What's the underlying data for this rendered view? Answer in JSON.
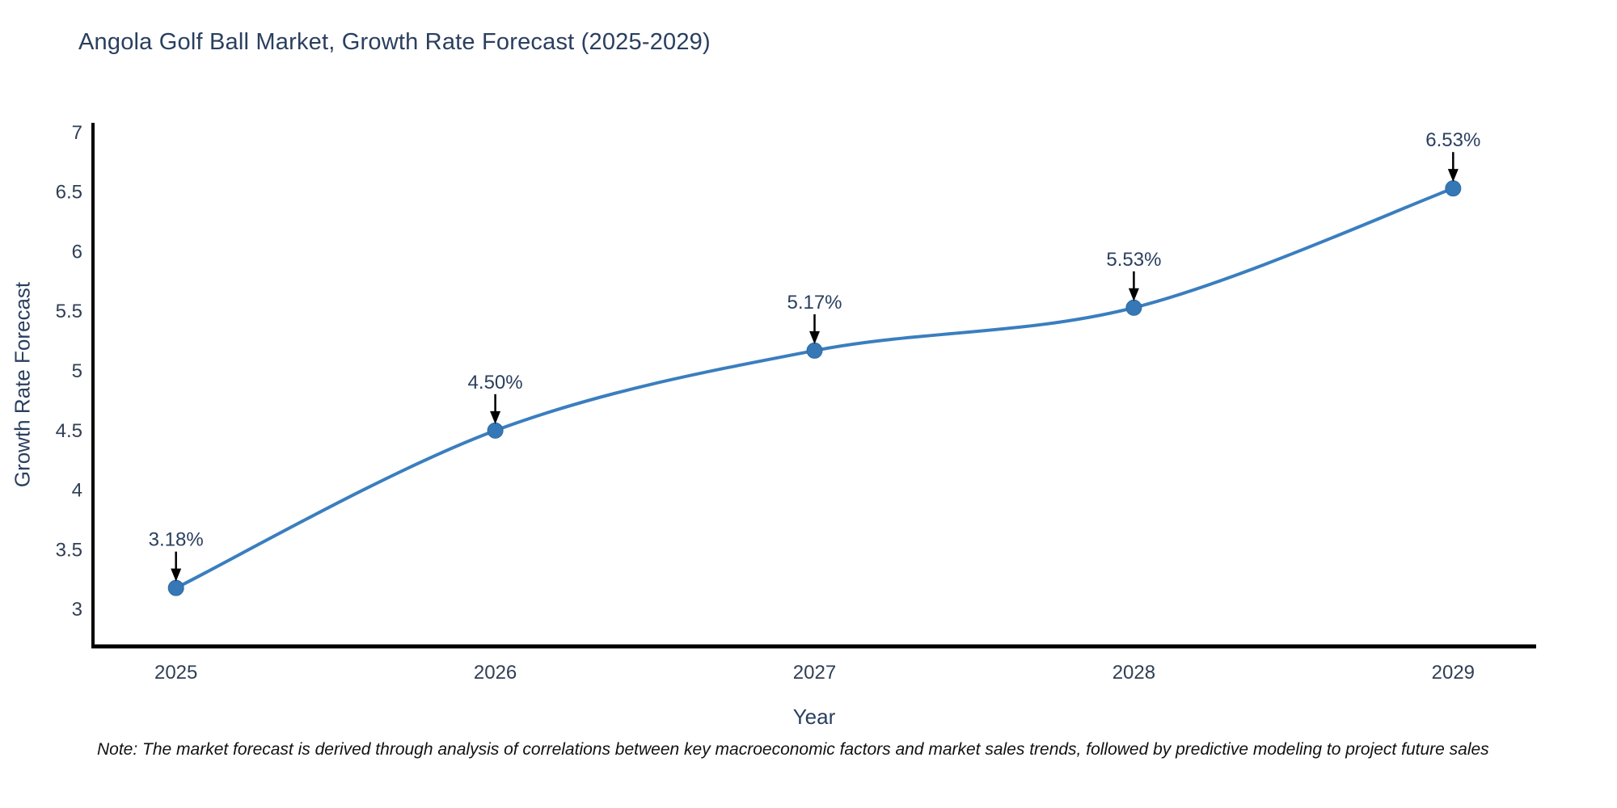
{
  "page": {
    "background": "#ffffff"
  },
  "chart_data": {
    "type": "line",
    "title": "Angola Golf Ball Market, Growth Rate Forecast (2025-2029)",
    "xlabel": "Year",
    "ylabel": "Growth Rate Forecast",
    "x": [
      2025,
      2026,
      2027,
      2028,
      2029
    ],
    "x_tick_labels": [
      "2025",
      "2026",
      "2027",
      "2028",
      "2029"
    ],
    "series": [
      {
        "name": "Growth Rate Forecast",
        "values": [
          3.18,
          4.5,
          5.17,
          5.53,
          6.53
        ]
      }
    ],
    "annotations": [
      "3.18%",
      "4.50%",
      "5.17%",
      "5.53%",
      "6.53%"
    ],
    "y_ticks": [
      3,
      3.5,
      4,
      4.5,
      5,
      5.5,
      6,
      6.5,
      7
    ],
    "y_tick_labels": [
      "3",
      "3.5",
      "4",
      "4.5",
      "5",
      "5.5",
      "6",
      "6.5",
      "7"
    ],
    "xlim": [
      2024.74,
      2029.26
    ],
    "ylim": [
      2.69,
      7.08
    ],
    "grid": false,
    "line_shape": "spline",
    "legend": "none",
    "colors": {
      "line": "#3a7ebf",
      "marker": "#3578b5",
      "marker_edge": "#2d6aa3",
      "text": "#2a3f5f",
      "axis": "#000000",
      "arrow": "#000000"
    }
  },
  "note": {
    "text": "Note: The market forecast is derived through analysis of correlations between key macroeconomic factors and market sales trends, followed by predictive modeling to project future sales"
  }
}
